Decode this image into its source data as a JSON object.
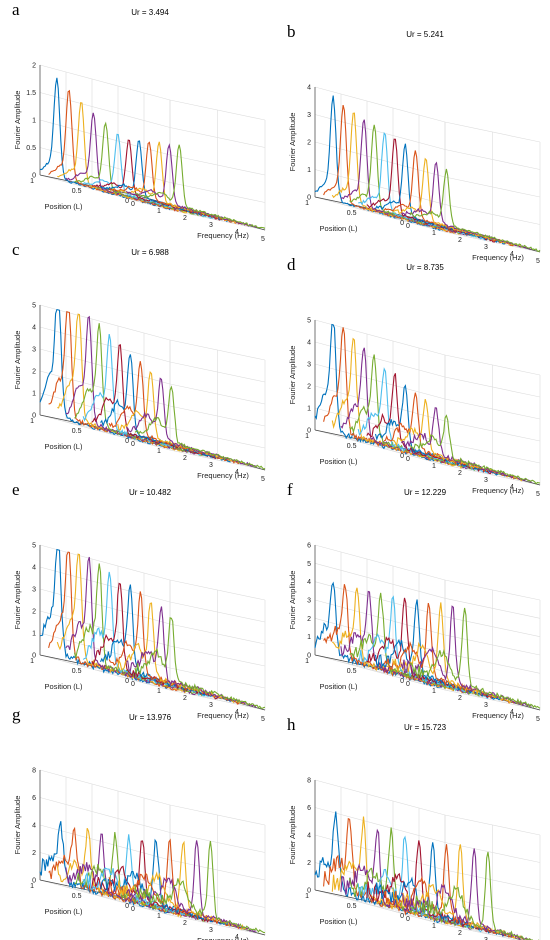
{
  "figure": {
    "panels": [
      {
        "letter": "a",
        "title": "Ur = 3.494"
      },
      {
        "letter": "b",
        "title": "Ur = 5.241"
      },
      {
        "letter": "c",
        "title": "Ur = 6.988"
      },
      {
        "letter": "d",
        "title": "Ur = 8.735"
      },
      {
        "letter": "e",
        "title": "Ur = 10.482"
      },
      {
        "letter": "f",
        "title": "Ur = 12.229"
      },
      {
        "letter": "g",
        "title": "Ur = 13.976"
      },
      {
        "letter": "h",
        "title": "Ur = 15.723"
      }
    ]
  },
  "colors": [
    "#0072BD",
    "#D95319",
    "#EDB120",
    "#7E2F8E",
    "#77AC30",
    "#4DBEEE",
    "#A2142F"
  ],
  "chart_data": [
    {
      "type": "line",
      "title": "Ur = 3.494",
      "xlabel": "Frequency (Hz)",
      "ylabel": "Position (L)",
      "zlabel": "Fourier Amplitude",
      "xlim": [
        0,
        5
      ],
      "ylim": [
        0,
        1
      ],
      "zlim": [
        0,
        2
      ],
      "xticks": [
        "0",
        "1",
        "2",
        "3",
        "4",
        "5"
      ],
      "yticks": [
        "0",
        "0.5",
        "1"
      ],
      "zticks": [
        "0",
        "0.5",
        "1",
        "1.5",
        "2"
      ],
      "grid": true,
      "series_count": 12,
      "peaks": [
        {
          "position": 1.0,
          "frequency": 0.65,
          "amplitude": 1.7
        },
        {
          "position": 0.5,
          "frequency": 1.4,
          "amplitude": 1.0
        },
        {
          "position": 0.0,
          "frequency": 1.7,
          "amplitude": 1.1
        }
      ]
    },
    {
      "type": "line",
      "title": "Ur = 5.241",
      "xlabel": "Frequency (Hz)",
      "ylabel": "Position (L)",
      "zlabel": "Fourier Amplitude",
      "xlim": [
        0,
        5
      ],
      "ylim": [
        0,
        1
      ],
      "zlim": [
        0,
        4
      ],
      "xticks": [
        "0",
        "1",
        "2",
        "3",
        "4",
        "5"
      ],
      "yticks": [
        "0",
        "0.5",
        "1"
      ],
      "zticks": [
        "0",
        "1",
        "2",
        "3",
        "4"
      ],
      "grid": true,
      "series_count": 12,
      "peaks": [
        {
          "position": 1.0,
          "frequency": 0.7,
          "amplitude": 3.5
        },
        {
          "position": 0.0,
          "frequency": 1.4,
          "amplitude": 2.0
        }
      ]
    },
    {
      "type": "line",
      "title": "Ur = 6.988",
      "xlabel": "Frequency (Hz)",
      "ylabel": "Position (L)",
      "zlabel": "Fourier Amplitude",
      "xlim": [
        0,
        5
      ],
      "ylim": [
        0,
        1
      ],
      "zlim": [
        0,
        5
      ],
      "xticks": [
        "0",
        "1",
        "2",
        "3",
        "4",
        "5"
      ],
      "yticks": [
        "0",
        "0.5",
        "1"
      ],
      "zticks": [
        "0",
        "1",
        "2",
        "3",
        "4",
        "5"
      ],
      "grid": true,
      "series_count": 12,
      "peaks": [
        {
          "position": 1.0,
          "frequency": 0.7,
          "amplitude": 5.1
        },
        {
          "position": 0.0,
          "frequency": 1.4,
          "amplitude": 2.5
        }
      ]
    },
    {
      "type": "line",
      "title": "Ur = 8.735",
      "xlabel": "Frequency (Hz)",
      "ylabel": "Position (L)",
      "zlabel": "Fourier Amplitude",
      "xlim": [
        0,
        5
      ],
      "ylim": [
        0,
        1
      ],
      "zlim": [
        0,
        5
      ],
      "xticks": [
        "0",
        "1",
        "2",
        "3",
        "4",
        "5"
      ],
      "yticks": [
        "0",
        "0.5",
        "1"
      ],
      "zticks": [
        "0",
        "1",
        "2",
        "3",
        "4",
        "5"
      ],
      "grid": true,
      "series_count": 12,
      "peaks": [
        {
          "position": 1.0,
          "frequency": 0.7,
          "amplitude": 4.4
        },
        {
          "position": 0.0,
          "frequency": 1.4,
          "amplitude": 1.8
        }
      ]
    },
    {
      "type": "line",
      "title": "Ur = 10.482",
      "xlabel": "Frequency (Hz)",
      "ylabel": "Position (L)",
      "zlabel": "Fourier Amplitude",
      "xlim": [
        0,
        5
      ],
      "ylim": [
        0,
        1
      ],
      "zlim": [
        0,
        5
      ],
      "xticks": [
        "0",
        "1",
        "2",
        "3",
        "4",
        "5"
      ],
      "yticks": [
        "0",
        "0.5",
        "1"
      ],
      "zticks": [
        "0",
        "1",
        "2",
        "3",
        "4",
        "5"
      ],
      "grid": true,
      "series_count": 12,
      "peaks": [
        {
          "position": 1.0,
          "frequency": 0.7,
          "amplitude": 4.8
        },
        {
          "position": 0.0,
          "frequency": 1.4,
          "amplitude": 2.9
        }
      ]
    },
    {
      "type": "line",
      "title": "Ur = 12.229",
      "xlabel": "Frequency (Hz)",
      "ylabel": "Position (L)",
      "zlabel": "Fourier Amplitude",
      "xlim": [
        0,
        5
      ],
      "ylim": [
        0,
        1
      ],
      "zlim": [
        0,
        6
      ],
      "xticks": [
        "0",
        "1",
        "2",
        "3",
        "4",
        "5"
      ],
      "yticks": [
        "0",
        "0.5",
        "1"
      ],
      "zticks": [
        "0",
        "1",
        "2",
        "3",
        "4",
        "5",
        "6"
      ],
      "grid": true,
      "series_count": 12,
      "peaks": [
        {
          "position": 1.0,
          "frequency": 0.7,
          "amplitude": 3.4
        },
        {
          "position": 0.0,
          "frequency": 2.1,
          "amplitude": 4.2
        }
      ]
    },
    {
      "type": "line",
      "title": "Ur = 13.976",
      "xlabel": "Frequency (Hz)",
      "ylabel": "Position (L)",
      "zlabel": "Fourier Amplitude",
      "xlim": [
        0,
        5
      ],
      "ylim": [
        0,
        1
      ],
      "zlim": [
        0,
        8
      ],
      "xticks": [
        "0",
        "1",
        "2",
        "3",
        "4",
        "5"
      ],
      "yticks": [
        "0",
        "0.5",
        "1"
      ],
      "zticks": [
        "0",
        "2",
        "4",
        "6",
        "8"
      ],
      "grid": true,
      "series_count": 12,
      "peaks": [
        {
          "position": 1.0,
          "frequency": 0.8,
          "amplitude": 3.3
        },
        {
          "position": 0.0,
          "frequency": 2.9,
          "amplitude": 5.5
        }
      ]
    },
    {
      "type": "line",
      "title": "Ur = 15.723",
      "xlabel": "Frequency (Hz)",
      "ylabel": "Position (L)",
      "zlabel": "Fourier Amplitude",
      "xlim": [
        0,
        5
      ],
      "ylim": [
        0,
        1
      ],
      "zlim": [
        0,
        8
      ],
      "xticks": [
        "0",
        "1",
        "2",
        "3",
        "4",
        "5"
      ],
      "yticks": [
        "0",
        "0.5",
        "1"
      ],
      "zticks": [
        "0",
        "2",
        "4",
        "6",
        "8"
      ],
      "grid": true,
      "series_count": 12,
      "peaks": [
        {
          "position": 1.0,
          "frequency": 0.8,
          "amplitude": 5.0
        },
        {
          "position": 0.0,
          "frequency": 3.0,
          "amplitude": 5.5
        }
      ]
    }
  ]
}
